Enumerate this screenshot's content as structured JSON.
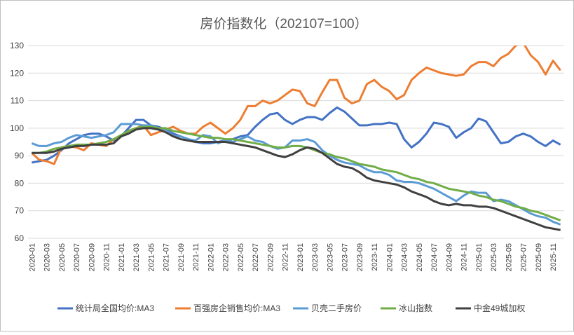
{
  "chart_data": {
    "type": "line",
    "title": "房价指数化（202107=100）",
    "categories": [
      "2020-01",
      null,
      "2020-03",
      null,
      "2020-05",
      null,
      "2020-07",
      null,
      "2020-09",
      null,
      "2020-11",
      null,
      "2021-01",
      null,
      "2021-03",
      null,
      "2021-05",
      null,
      "2021-07",
      null,
      "2021-09",
      null,
      "2021-11",
      null,
      "2022-01",
      null,
      "2022-03",
      null,
      "2022-05",
      null,
      "2022-07",
      null,
      "2022-09",
      null,
      "2022-11",
      null,
      "2023-01",
      null,
      "2023-03",
      null,
      "2023-05",
      null,
      "2023-07",
      null,
      "2023-09",
      null,
      "2023-11",
      null,
      "2024-01",
      null,
      "2024-03",
      null,
      "2024-05",
      null,
      "2024-07",
      null,
      "2024-09",
      null,
      "2024-11",
      null,
      "2025-01",
      null,
      "2025-03",
      null,
      "2025-05",
      null,
      "2025-07",
      null,
      "2025-09",
      null,
      "2025-11",
      null
    ],
    "series": [
      {
        "name": "统计局全国均价:MA3",
        "color": "#4472c4",
        "values": [
          87.5,
          88,
          88.5,
          90,
          92,
          94.5,
          96,
          97.5,
          98,
          98,
          97,
          95.5,
          97,
          100,
          103,
          103,
          101,
          100.5,
          99.5,
          98,
          97,
          96,
          95,
          94.5,
          94.5,
          95,
          95.5,
          96,
          97,
          97.5,
          100.5,
          103,
          105,
          105.5,
          103,
          101.5,
          103,
          104,
          104,
          103,
          105.5,
          107.5,
          106,
          103.5,
          101,
          101,
          101.5,
          101.5,
          102,
          101.5,
          96,
          93,
          95,
          98,
          102,
          101.5,
          100.5,
          96.5,
          98.5,
          100,
          103.5,
          102.5,
          98.5,
          94.5,
          95,
          97,
          98,
          97,
          95,
          93.5,
          95.5,
          94
        ]
      },
      {
        "name": "百强房企销售均价:MA3",
        "color": "#ed7d31",
        "values": [
          91,
          88.5,
          88,
          87,
          93,
          93.5,
          93,
          92,
          94.5,
          94,
          93.5,
          96,
          97,
          99,
          100,
          101,
          97.5,
          98.5,
          99.5,
          100.5,
          99,
          98,
          98,
          100.5,
          102,
          100,
          98,
          100,
          103,
          108,
          108,
          110,
          109,
          110,
          112,
          114,
          113.5,
          109,
          108,
          113,
          117.5,
          117.5,
          111,
          109,
          110,
          116,
          117.5,
          115,
          113.5,
          110.5,
          112,
          117.5,
          120,
          122,
          121,
          120,
          119.5,
          119,
          119.5,
          122.5,
          124,
          124,
          122.5,
          125.5,
          127,
          130,
          131,
          126.5,
          124,
          119.5,
          124.5,
          121
        ]
      },
      {
        "name": "贝壳二手房价",
        "color": "#5b9bd5",
        "values": [
          94.5,
          93.5,
          93.5,
          94.5,
          95,
          96.5,
          97.5,
          97,
          96.5,
          97,
          97.5,
          98.5,
          101.5,
          101.5,
          101.5,
          101,
          101,
          100,
          99.5,
          97,
          97,
          96,
          95.5,
          97.5,
          97,
          94.5,
          95.5,
          95,
          96,
          97,
          95.5,
          95,
          93.5,
          92.5,
          93,
          95.5,
          95.5,
          96,
          95,
          92,
          90,
          88.5,
          87.5,
          87,
          86.5,
          85,
          84,
          84,
          83,
          81,
          80.5,
          80.5,
          80,
          79,
          78,
          76.5,
          75,
          73.5,
          75.5,
          77,
          76.5,
          76.5,
          73.5,
          74,
          73.5,
          72,
          70.5,
          69,
          68,
          67.5,
          66,
          65
        ]
      },
      {
        "name": "冰山指数",
        "color": "#70ad47",
        "values": [
          91,
          91,
          91.5,
          92.5,
          93,
          93.5,
          94,
          94,
          94,
          94.5,
          95,
          96,
          97.5,
          99,
          100,
          100.5,
          100.5,
          100,
          100,
          99,
          98.5,
          98,
          97.5,
          97,
          96.5,
          96.5,
          96,
          96,
          95.5,
          95,
          94.5,
          94,
          93.5,
          93,
          93,
          93.5,
          93.5,
          93,
          92,
          91,
          90.5,
          89.5,
          89,
          88,
          87,
          86.5,
          86,
          85,
          84.5,
          84,
          83,
          82,
          81.5,
          80.5,
          80,
          79,
          78,
          77.5,
          77,
          76.5,
          75.5,
          75,
          74,
          73.5,
          72.5,
          71.5,
          71,
          70,
          69.5,
          68.5,
          67.5,
          66.5
        ]
      },
      {
        "name": "中金49城加权",
        "color": "#404040",
        "values": [
          91,
          91,
          91,
          91.5,
          92.5,
          93,
          93.5,
          93.5,
          94,
          94,
          94,
          94.5,
          97,
          98,
          99.5,
          100,
          100,
          99.5,
          98.5,
          97,
          96,
          95.5,
          95,
          95,
          95,
          95,
          95,
          94.5,
          94,
          93.5,
          93,
          92,
          91,
          90,
          89.5,
          90.5,
          92,
          93,
          92.5,
          91,
          89,
          87,
          86,
          85.5,
          84,
          82,
          81,
          80.5,
          80,
          79.5,
          78.5,
          77,
          76,
          75,
          73.5,
          72.5,
          72,
          72.5,
          72,
          72,
          71.5,
          71.5,
          71,
          70,
          69,
          68,
          67,
          66,
          65,
          64,
          63.5,
          63
        ]
      }
    ],
    "ylim": [
      60,
      130
    ],
    "yticks": [
      60,
      70,
      80,
      90,
      100,
      110,
      120,
      130
    ],
    "grid": true,
    "legend": "bottom"
  }
}
